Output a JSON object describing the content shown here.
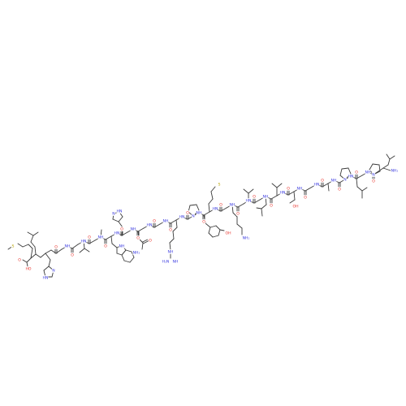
{
  "colors": {
    "bond": "#3a3a3a",
    "oxygen": "#e8322b",
    "nitrogen": "#3a3ae0",
    "sulfur": "#b8a400",
    "background": "#ffffff"
  },
  "atom_labels": {
    "oxygen": "O",
    "hydroxyl": "OH",
    "hydroxyl_left": "HO",
    "amine_nh": "NH",
    "amine_hn": "HN",
    "nitrogen": "N",
    "primary_amine": "NH₂",
    "imine_nh": "NH",
    "amine_h2n": "H₂N",
    "sulfur": "S"
  }
}
